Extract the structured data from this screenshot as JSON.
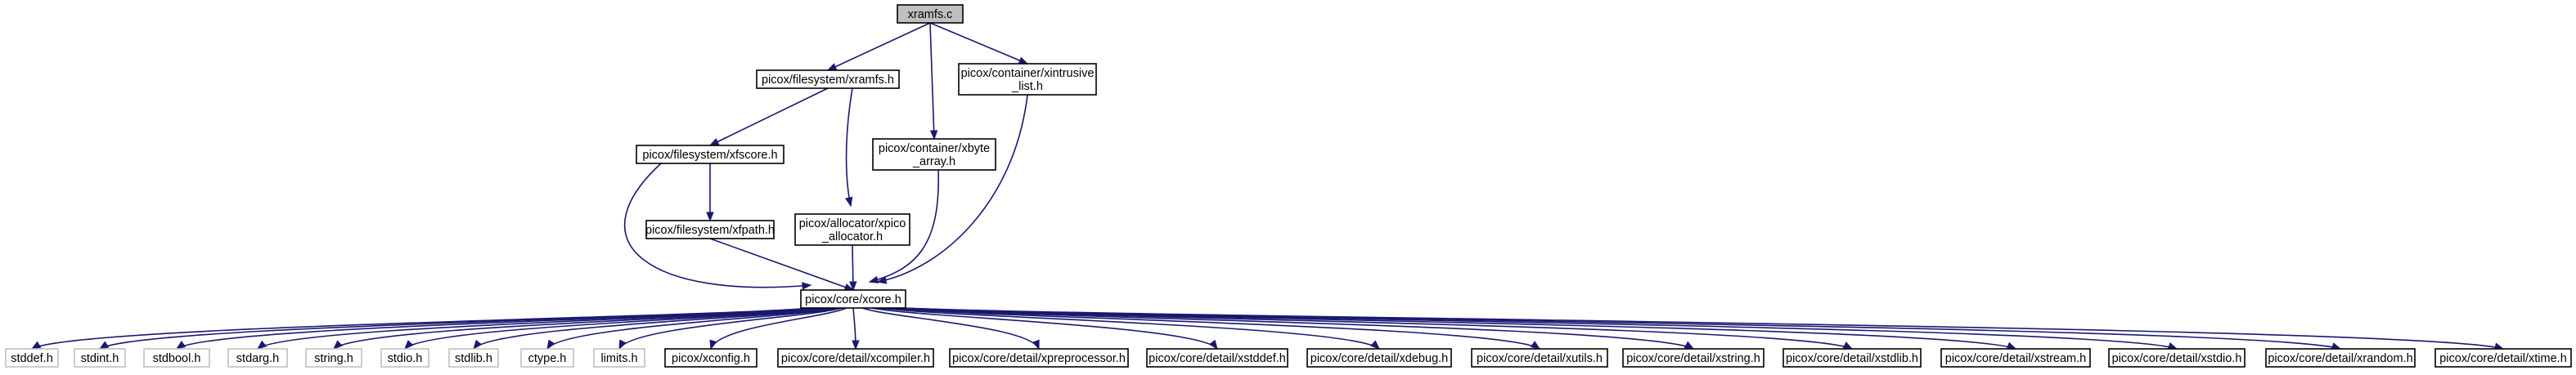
{
  "colors": {
    "edge": "#191970",
    "root_fill": "#bfbfbf",
    "root_stroke": "#000000",
    "node_fill": "#ffffff",
    "node_stroke": "#000000",
    "system_header_stroke": "#bfbfbf"
  },
  "nodes": {
    "xramfs_c": {
      "lines": [
        "xramfs.c"
      ],
      "kind": "root"
    },
    "fs_xramfs_h": {
      "lines": [
        "picox/filesystem/xramfs.h"
      ],
      "kind": "normal"
    },
    "container_xintrusive_list_h": {
      "lines": [
        "picox/container/xintrusive",
        "_list.h"
      ],
      "kind": "normal"
    },
    "fs_xfscore_h": {
      "lines": [
        "picox/filesystem/xfscore.h"
      ],
      "kind": "normal"
    },
    "container_xbyte_array_h": {
      "lines": [
        "picox/container/xbyte",
        "_array.h"
      ],
      "kind": "normal"
    },
    "fs_xfpath_h": {
      "lines": [
        "picox/filesystem/xfpath.h"
      ],
      "kind": "normal"
    },
    "allocator_xpico_allocator_h": {
      "lines": [
        "picox/allocator/xpico",
        "_allocator.h"
      ],
      "kind": "normal"
    },
    "core_xcore_h": {
      "lines": [
        "picox/core/xcore.h"
      ],
      "kind": "normal"
    },
    "stddef_h": {
      "lines": [
        "stddef.h"
      ],
      "kind": "system"
    },
    "stdint_h": {
      "lines": [
        "stdint.h"
      ],
      "kind": "system"
    },
    "stdbool_h": {
      "lines": [
        "stdbool.h"
      ],
      "kind": "system"
    },
    "stdarg_h": {
      "lines": [
        "stdarg.h"
      ],
      "kind": "system"
    },
    "string_h": {
      "lines": [
        "string.h"
      ],
      "kind": "system"
    },
    "stdio_h": {
      "lines": [
        "stdio.h"
      ],
      "kind": "system"
    },
    "stdlib_h": {
      "lines": [
        "stdlib.h"
      ],
      "kind": "system"
    },
    "ctype_h": {
      "lines": [
        "ctype.h"
      ],
      "kind": "system"
    },
    "limits_h": {
      "lines": [
        "limits.h"
      ],
      "kind": "system"
    },
    "xconfig_h": {
      "lines": [
        "picox/xconfig.h"
      ],
      "kind": "normal"
    },
    "xcompiler_h": {
      "lines": [
        "picox/core/detail/xcompiler.h"
      ],
      "kind": "normal"
    },
    "xpreprocessor_h": {
      "lines": [
        "picox/core/detail/xpreprocessor.h"
      ],
      "kind": "normal"
    },
    "xstddef_h": {
      "lines": [
        "picox/core/detail/xstddef.h"
      ],
      "kind": "normal"
    },
    "xdebug_h": {
      "lines": [
        "picox/core/detail/xdebug.h"
      ],
      "kind": "normal"
    },
    "xutils_h": {
      "lines": [
        "picox/core/detail/xutils.h"
      ],
      "kind": "normal"
    },
    "xstring_h": {
      "lines": [
        "picox/core/detail/xstring.h"
      ],
      "kind": "normal"
    },
    "xstdlib_h": {
      "lines": [
        "picox/core/detail/xstdlib.h"
      ],
      "kind": "normal"
    },
    "xstream_h": {
      "lines": [
        "picox/core/detail/xstream.h"
      ],
      "kind": "normal"
    },
    "xstdio_h": {
      "lines": [
        "picox/core/detail/xstdio.h"
      ],
      "kind": "normal"
    },
    "xrandom_h": {
      "lines": [
        "picox/core/detail/xrandom.h"
      ],
      "kind": "normal"
    },
    "xtime_h": {
      "lines": [
        "picox/core/detail/xtime.h"
      ],
      "kind": "normal"
    }
  },
  "edges": [
    {
      "from": "xramfs_c",
      "to": "fs_xramfs_h"
    },
    {
      "from": "xramfs_c",
      "to": "container_xintrusive_list_h"
    },
    {
      "from": "xramfs_c",
      "to": "container_xbyte_array_h"
    },
    {
      "from": "fs_xramfs_h",
      "to": "fs_xfscore_h"
    },
    {
      "from": "fs_xramfs_h",
      "to": "allocator_xpico_allocator_h"
    },
    {
      "from": "container_xintrusive_list_h",
      "to": "core_xcore_h"
    },
    {
      "from": "fs_xfscore_h",
      "to": "fs_xfpath_h"
    },
    {
      "from": "fs_xfscore_h",
      "to": "core_xcore_h"
    },
    {
      "from": "container_xbyte_array_h",
      "to": "core_xcore_h"
    },
    {
      "from": "fs_xfpath_h",
      "to": "core_xcore_h"
    },
    {
      "from": "allocator_xpico_allocator_h",
      "to": "core_xcore_h"
    },
    {
      "from": "core_xcore_h",
      "to": "stddef_h"
    },
    {
      "from": "core_xcore_h",
      "to": "stdint_h"
    },
    {
      "from": "core_xcore_h",
      "to": "stdbool_h"
    },
    {
      "from": "core_xcore_h",
      "to": "stdarg_h"
    },
    {
      "from": "core_xcore_h",
      "to": "string_h"
    },
    {
      "from": "core_xcore_h",
      "to": "stdio_h"
    },
    {
      "from": "core_xcore_h",
      "to": "stdlib_h"
    },
    {
      "from": "core_xcore_h",
      "to": "ctype_h"
    },
    {
      "from": "core_xcore_h",
      "to": "limits_h"
    },
    {
      "from": "core_xcore_h",
      "to": "xconfig_h"
    },
    {
      "from": "core_xcore_h",
      "to": "xcompiler_h"
    },
    {
      "from": "core_xcore_h",
      "to": "xpreprocessor_h"
    },
    {
      "from": "core_xcore_h",
      "to": "xstddef_h"
    },
    {
      "from": "core_xcore_h",
      "to": "xdebug_h"
    },
    {
      "from": "core_xcore_h",
      "to": "xutils_h"
    },
    {
      "from": "core_xcore_h",
      "to": "xstring_h"
    },
    {
      "from": "core_xcore_h",
      "to": "xstdlib_h"
    },
    {
      "from": "core_xcore_h",
      "to": "xstream_h"
    },
    {
      "from": "core_xcore_h",
      "to": "xstdio_h"
    },
    {
      "from": "core_xcore_h",
      "to": "xrandom_h"
    },
    {
      "from": "core_xcore_h",
      "to": "xtime_h"
    }
  ]
}
